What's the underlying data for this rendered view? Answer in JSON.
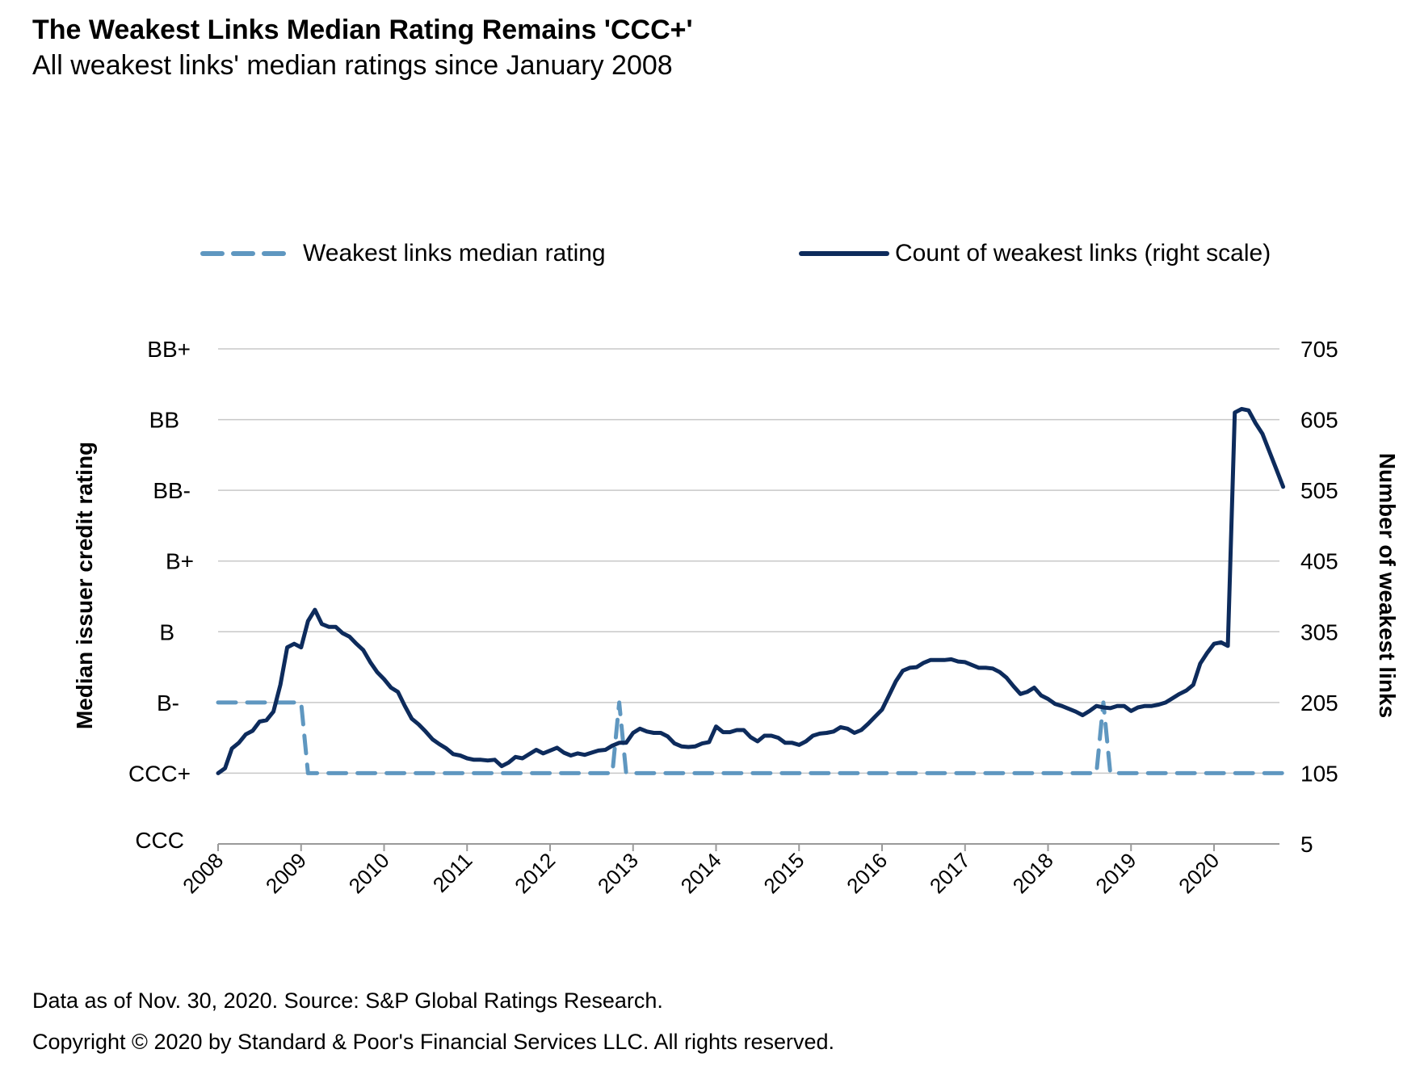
{
  "header": {
    "title": "The Weakest Links Median Rating Remains 'CCC+'",
    "subtitle": "All weakest links' median ratings since January 2008"
  },
  "legend": {
    "rating_label": "Weakest links median rating",
    "count_label": "Count of weakest links (right scale)"
  },
  "footer": {
    "source": "Data as of Nov. 30, 2020. Source: S&P Global Ratings Research.",
    "copyright": "Copyright © 2020 by Standard & Poor's Financial Services LLC. All rights reserved."
  },
  "colors": {
    "rating": "#5f97c0",
    "count": "#0d2b5c",
    "grid": "#c8c8c8"
  },
  "chart_data": {
    "type": "line",
    "title": "The Weakest Links Median Rating Remains 'CCC+'",
    "subtitle": "All weakest links' median ratings since January 2008",
    "xlabel": "",
    "ylabel": "Median issuer credit rating",
    "ylabel_right": "Number of weakest links",
    "x_start": "2008-01",
    "x_end": "2020-11",
    "x_frequency": "monthly",
    "x_tick_labels": [
      "2008",
      "2009",
      "2010",
      "2011",
      "2012",
      "2013",
      "2014",
      "2015",
      "2016",
      "2017",
      "2018",
      "2019",
      "2020"
    ],
    "y_left_ticks": [
      "CCC",
      "CCC+",
      "B-",
      "B",
      "B+",
      "BB-",
      "BB",
      "BB+"
    ],
    "y_right_ticks": [
      5,
      105,
      205,
      305,
      405,
      505,
      605,
      705
    ],
    "y_right_range": [
      5,
      705
    ],
    "grid": true,
    "legend_position": "top",
    "series": [
      {
        "name": "Weakest links median rating",
        "axis": "left",
        "style": "dashed",
        "values": [
          "B-",
          "B-",
          "B-",
          "B-",
          "B-",
          "B-",
          "B-",
          "B-",
          "B-",
          "B-",
          "B-",
          "B-",
          "B-",
          "CCC+",
          "CCC+",
          "CCC+",
          "CCC+",
          "CCC+",
          "CCC+",
          "CCC+",
          "CCC+",
          "CCC+",
          "CCC+",
          "CCC+",
          "CCC+",
          "CCC+",
          "CCC+",
          "CCC+",
          "CCC+",
          "CCC+",
          "CCC+",
          "CCC+",
          "CCC+",
          "CCC+",
          "CCC+",
          "CCC+",
          "CCC+",
          "CCC+",
          "CCC+",
          "CCC+",
          "CCC+",
          "CCC+",
          "CCC+",
          "CCC+",
          "CCC+",
          "CCC+",
          "CCC+",
          "CCC+",
          "CCC+",
          "CCC+",
          "CCC+",
          "CCC+",
          "CCC+",
          "CCC+",
          "CCC+",
          "CCC+",
          "CCC+",
          "CCC+",
          "B-",
          "CCC+",
          "CCC+",
          "CCC+",
          "CCC+",
          "CCC+",
          "CCC+",
          "CCC+",
          "CCC+",
          "CCC+",
          "CCC+",
          "CCC+",
          "CCC+",
          "CCC+",
          "CCC+",
          "CCC+",
          "CCC+",
          "CCC+",
          "CCC+",
          "CCC+",
          "CCC+",
          "CCC+",
          "CCC+",
          "CCC+",
          "CCC+",
          "CCC+",
          "CCC+",
          "CCC+",
          "CCC+",
          "CCC+",
          "CCC+",
          "CCC+",
          "CCC+",
          "CCC+",
          "CCC+",
          "CCC+",
          "CCC+",
          "CCC+",
          "CCC+",
          "CCC+",
          "CCC+",
          "CCC+",
          "CCC+",
          "CCC+",
          "CCC+",
          "CCC+",
          "CCC+",
          "CCC+",
          "CCC+",
          "CCC+",
          "CCC+",
          "CCC+",
          "CCC+",
          "CCC+",
          "CCC+",
          "CCC+",
          "CCC+",
          "CCC+",
          "CCC+",
          "CCC+",
          "CCC+",
          "CCC+",
          "CCC+",
          "CCC+",
          "CCC+",
          "CCC+",
          "CCC+",
          "CCC+",
          "CCC+",
          "CCC+",
          "B-",
          "CCC+",
          "CCC+",
          "CCC+",
          "CCC+",
          "CCC+",
          "CCC+",
          "CCC+",
          "CCC+",
          "CCC+",
          "CCC+",
          "CCC+",
          "CCC+",
          "CCC+",
          "CCC+",
          "CCC+",
          "CCC+",
          "CCC+",
          "CCC+",
          "CCC+",
          "CCC+",
          "CCC+",
          "CCC+",
          "CCC+",
          "CCC+",
          "CCC+",
          "CCC+"
        ]
      },
      {
        "name": "Count of weakest links (right scale)",
        "axis": "right",
        "style": "solid",
        "values": [
          105,
          112,
          140,
          148,
          160,
          165,
          178,
          180,
          192,
          230,
          283,
          288,
          283,
          320,
          336,
          316,
          312,
          312,
          303,
          298,
          288,
          279,
          262,
          248,
          238,
          226,
          220,
          200,
          182,
          174,
          164,
          153,
          146,
          140,
          132,
          130,
          126,
          124,
          124,
          123,
          124,
          115,
          120,
          128,
          126,
          132,
          138,
          133,
          137,
          141,
          134,
          130,
          133,
          131,
          134,
          137,
          138,
          144,
          148,
          148,
          162,
          168,
          164,
          162,
          162,
          157,
          147,
          143,
          142,
          143,
          147,
          149,
          171,
          163,
          163,
          166,
          166,
          156,
          150,
          158,
          158,
          155,
          148,
          148,
          145,
          150,
          158,
          161,
          162,
          164,
          170,
          168,
          162,
          166,
          175,
          185,
          195,
          215,
          235,
          250,
          254,
          255,
          261,
          265,
          265,
          265,
          266,
          263,
          262,
          258,
          254,
          254,
          253,
          248,
          240,
          228,
          217,
          220,
          226,
          215,
          210,
          203,
          200,
          196,
          192,
          187,
          193,
          200,
          198,
          197,
          200,
          200,
          193,
          198,
          200,
          200,
          202,
          205,
          211,
          217,
          222,
          230,
          260,
          275,
          288,
          290,
          285,
          615,
          620,
          618,
          600,
          585,
          560,
          535,
          510
        ]
      }
    ]
  }
}
